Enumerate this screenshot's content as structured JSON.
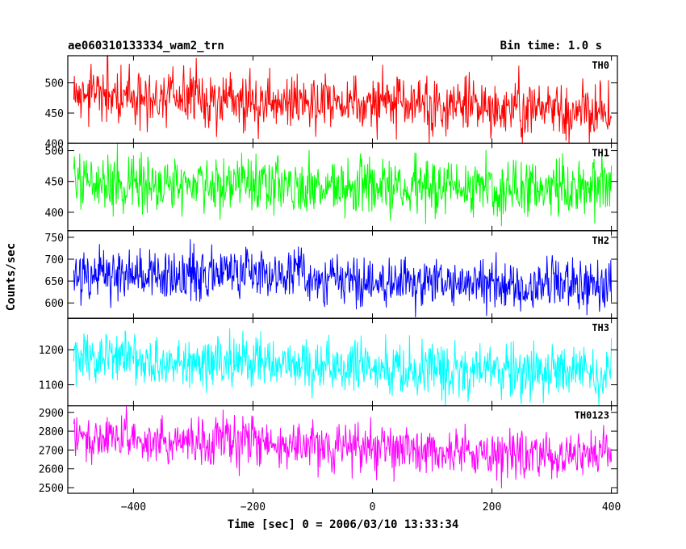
{
  "chart_data": {
    "type": "line",
    "title": "ae060310133334_wam2_trn",
    "subtitle": "Bin time: 1.0 s",
    "xlabel": "Time [sec] 0 = 2006/03/10 13:33:34",
    "ylabel": "Counts/sec",
    "xlim": [
      -510,
      410
    ],
    "data_range": [
      -500,
      400
    ],
    "x_ticks": [
      -400,
      -200,
      0,
      200,
      400
    ],
    "panels": [
      {
        "name": "TH0",
        "color": "#ff0000",
        "ylim": [
          400,
          545
        ],
        "y_ticks": [
          400,
          450,
          500
        ],
        "mean_start": 482,
        "mean_end": 452,
        "noise": 24
      },
      {
        "name": "TH1",
        "color": "#00ff00",
        "ylim": [
          370,
          512
        ],
        "y_ticks": [
          400,
          450,
          500
        ],
        "mean_start": 452,
        "mean_end": 435,
        "noise": 23
      },
      {
        "name": "TH2",
        "color": "#0000ff",
        "ylim": [
          565,
          765
        ],
        "y_ticks": [
          600,
          650,
          700,
          750
        ],
        "mean_start": 668,
        "mean_end": 638,
        "noise": 30
      },
      {
        "name": "TH3",
        "color": "#00ffff",
        "ylim": [
          1040,
          1290
        ],
        "y_ticks": [
          1100,
          1200
        ],
        "mean_start": 1178,
        "mean_end": 1130,
        "noise": 38
      },
      {
        "name": "TH0123",
        "color": "#ff00ff",
        "ylim": [
          2470,
          2935
        ],
        "y_ticks": [
          2500,
          2600,
          2700,
          2800,
          2900
        ],
        "mean_start": 2780,
        "mean_end": 2655,
        "noise": 65
      }
    ]
  }
}
